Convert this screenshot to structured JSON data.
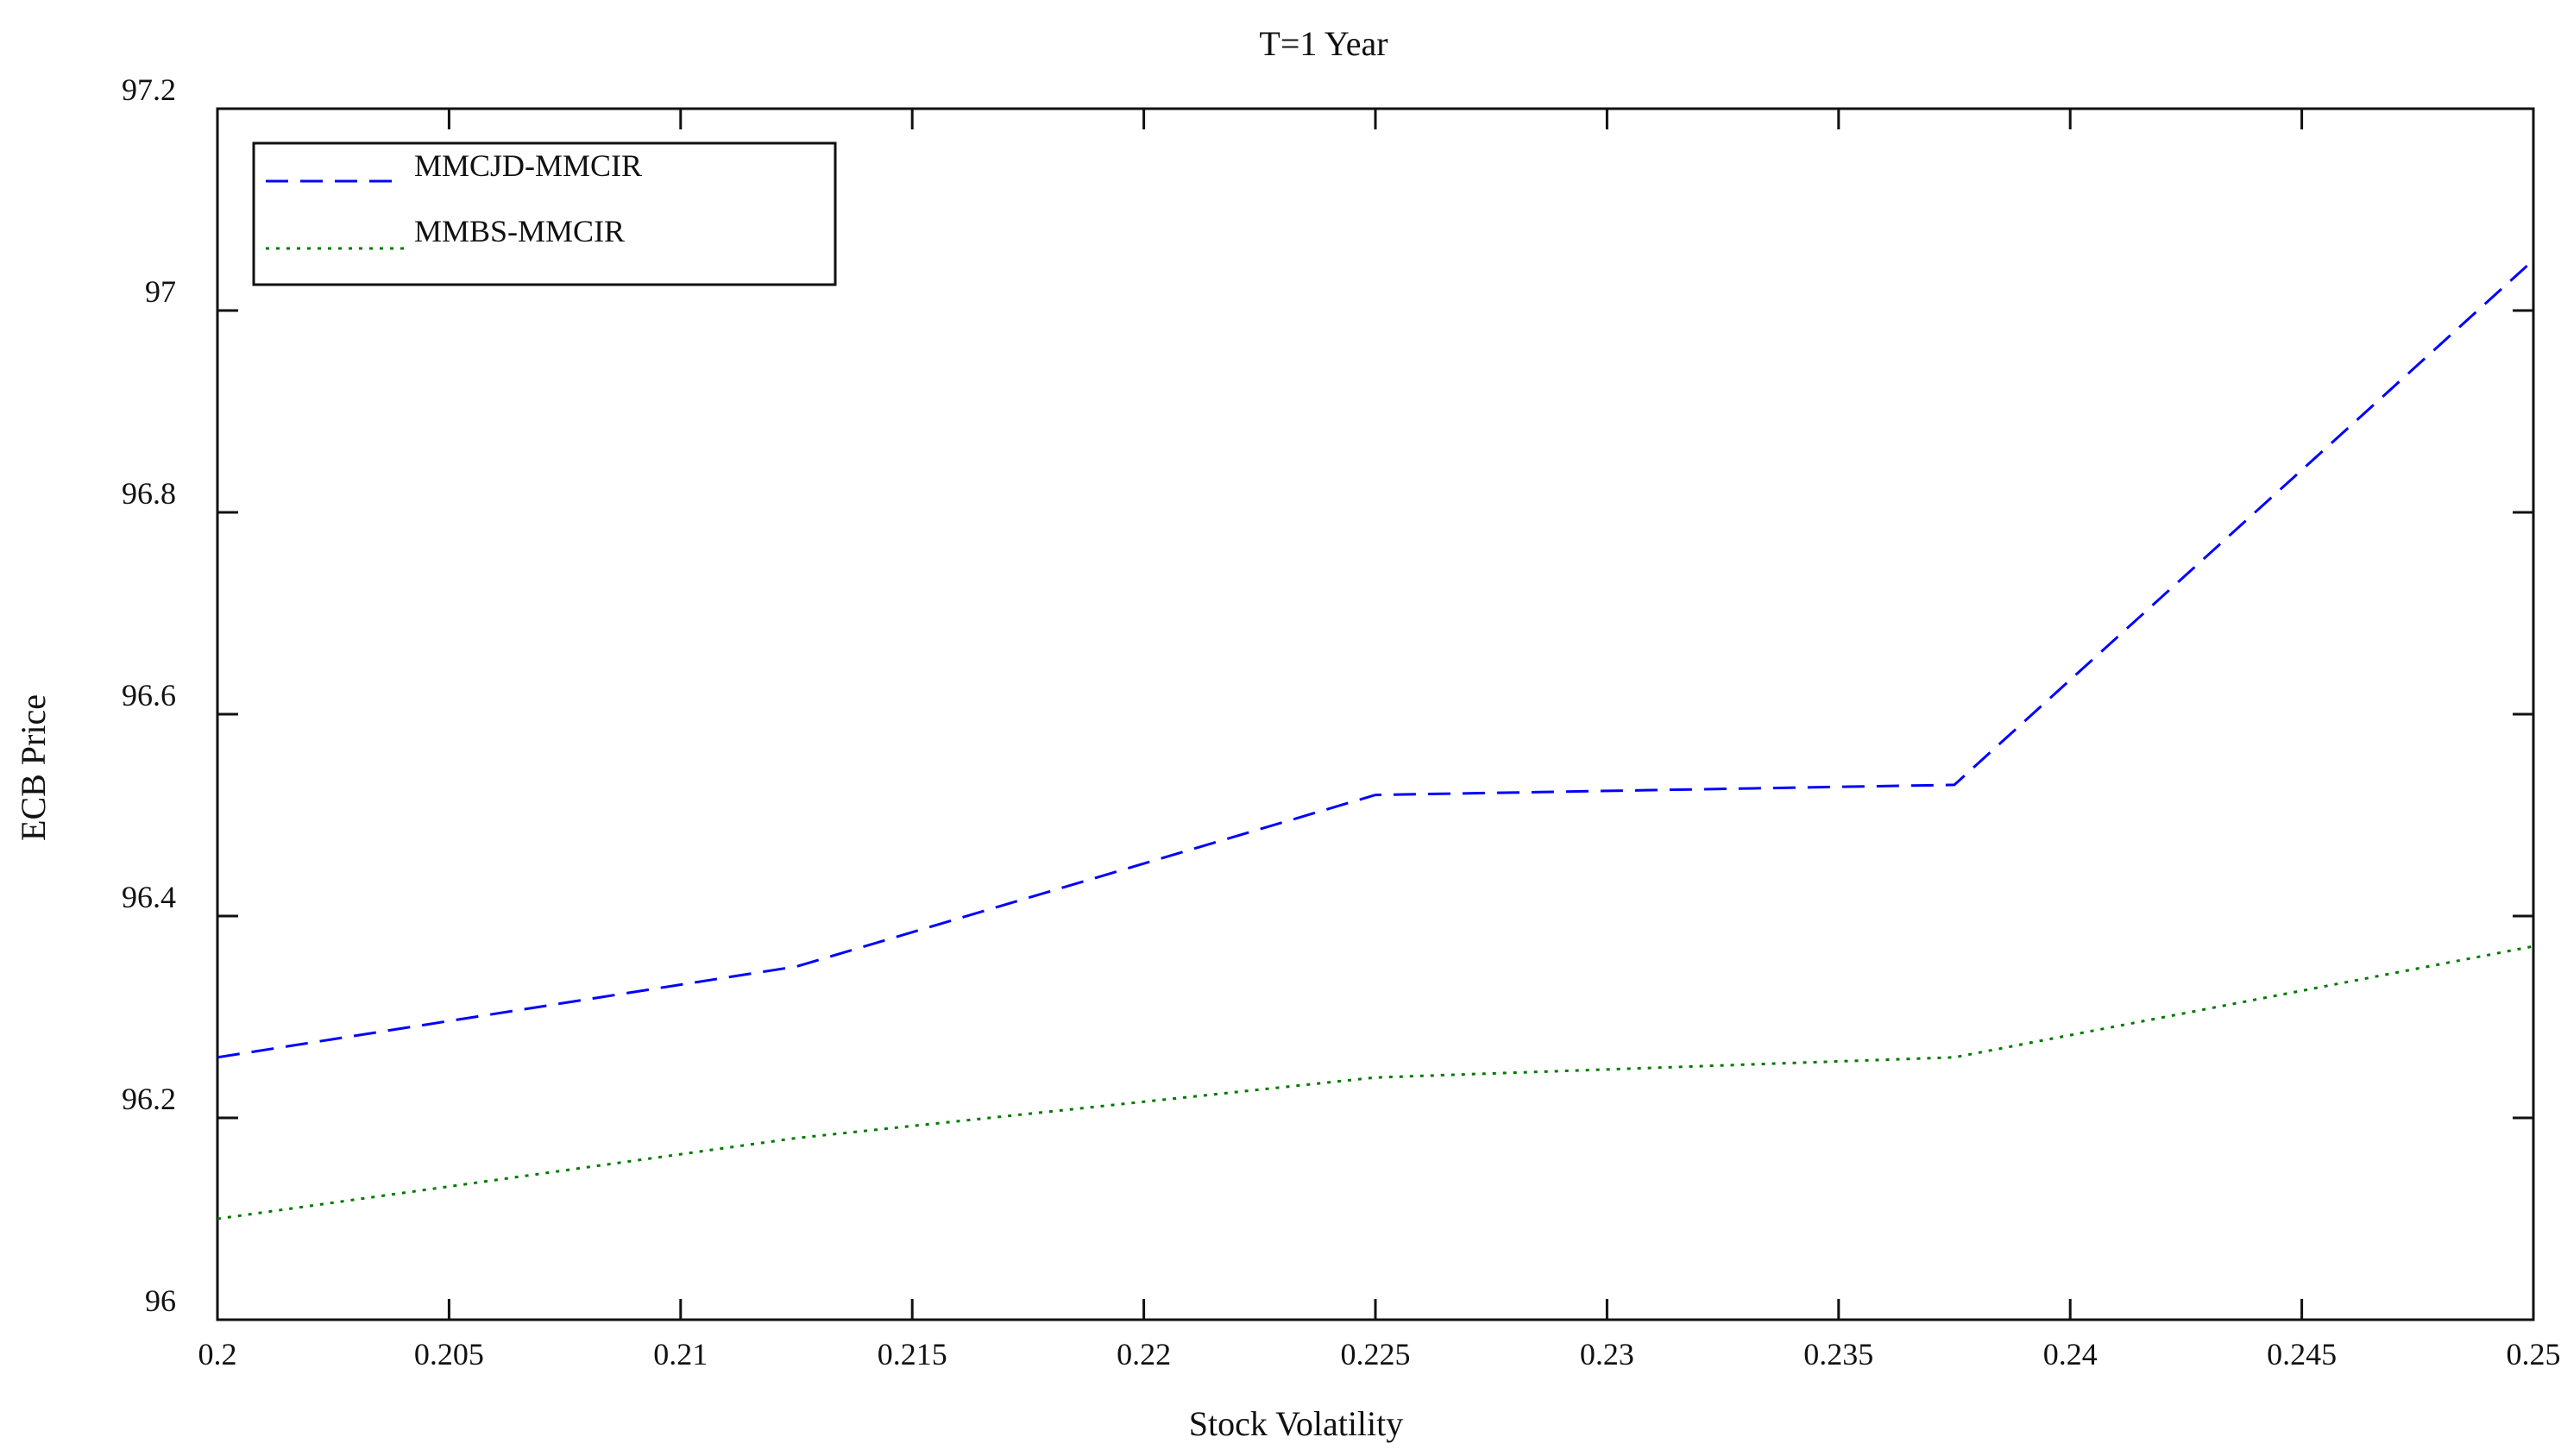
{
  "chart_data": {
    "type": "line",
    "title": "T=1 Year",
    "xlabel": "Stock Volatility",
    "ylabel": "ECB Price",
    "xlim": [
      0.2,
      0.25
    ],
    "ylim": [
      96,
      97.2
    ],
    "x_ticks": [
      "0.2",
      "0.205",
      "0.21",
      "0.215",
      "0.22",
      "0.225",
      "0.23",
      "0.235",
      "0.24",
      "0.245",
      "0.25"
    ],
    "y_ticks": [
      "96",
      "96.2",
      "96.4",
      "96.6",
      "96.8",
      "97",
      "97.2"
    ],
    "grid": false,
    "legend_position": "top-left",
    "series": [
      {
        "name": "MMCJD-MMCIR",
        "color": "#0000ff",
        "style": "dashed",
        "x": [
          0.2,
          0.2125,
          0.225,
          0.2375,
          0.25
        ],
        "y": [
          96.26,
          96.35,
          96.52,
          96.53,
          97.05
        ]
      },
      {
        "name": "MMBS-MMCIR",
        "color": "#007a00",
        "style": "dotted",
        "x": [
          0.2,
          0.2125,
          0.225,
          0.2375,
          0.25
        ],
        "y": [
          96.1,
          96.18,
          96.24,
          96.26,
          96.37
        ]
      }
    ]
  }
}
